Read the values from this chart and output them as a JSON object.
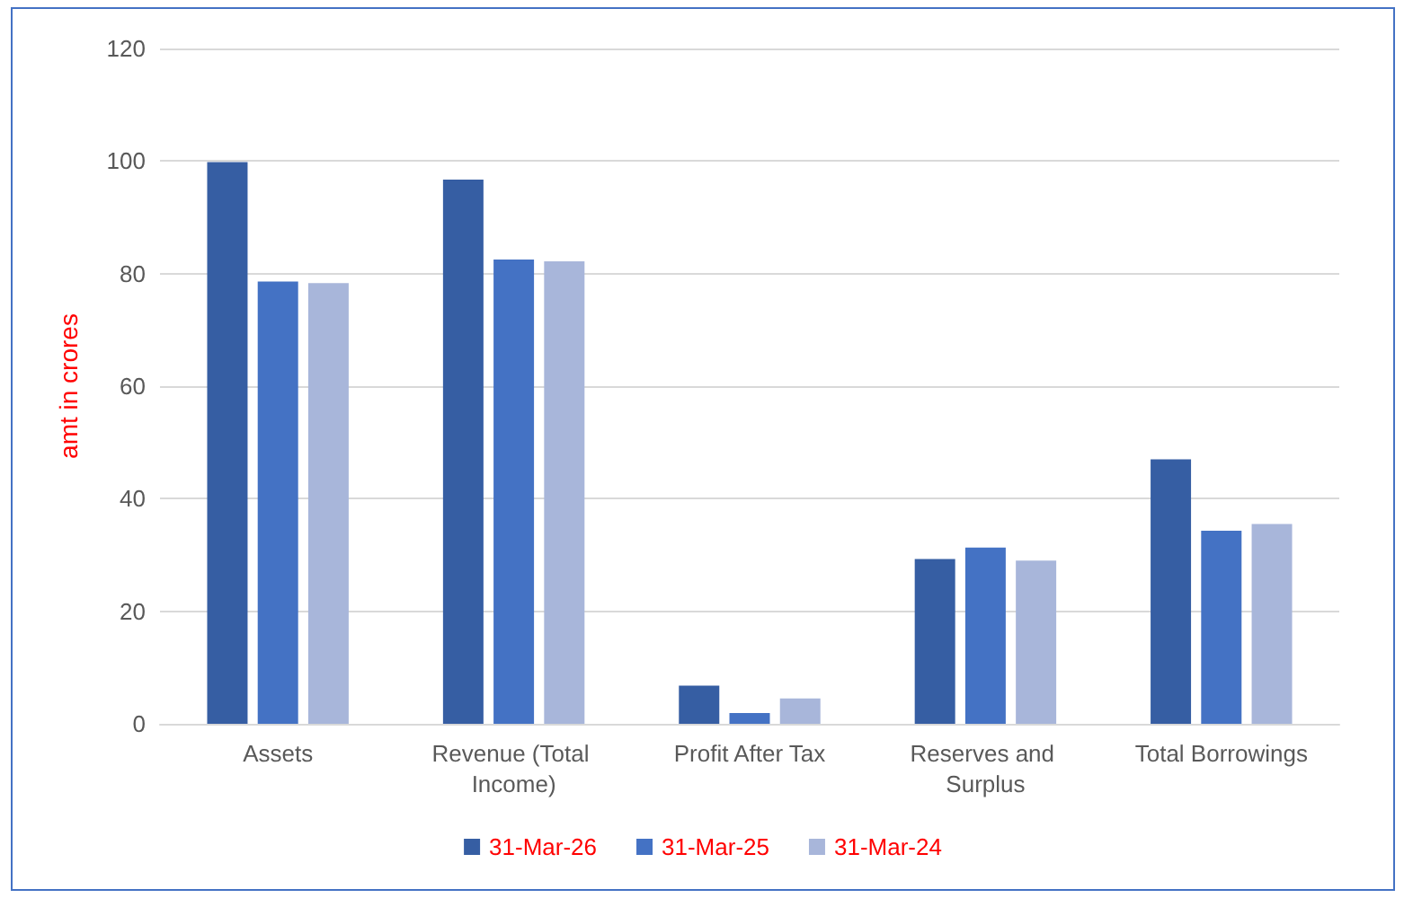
{
  "chart_data": {
    "type": "bar",
    "ylabel": "amt in crores",
    "categories": [
      "Assets",
      "Revenue (Total Income)",
      "Profit After Tax",
      "Reserves and Surplus",
      "Total Borrowings"
    ],
    "series": [
      {
        "name": "31-Mar-26",
        "color": "#365ea3",
        "values": [
          99.8,
          96.7,
          6.8,
          29.3,
          47.0
        ]
      },
      {
        "name": "31-Mar-25",
        "color": "#4472c4",
        "values": [
          78.6,
          82.5,
          1.9,
          31.3,
          34.3
        ]
      },
      {
        "name": "31-Mar-24",
        "color": "#a8b6da",
        "values": [
          78.3,
          82.2,
          4.5,
          29.0,
          35.5
        ]
      }
    ],
    "ylim": [
      0,
      120
    ],
    "yticks": [
      0,
      20,
      40,
      60,
      80,
      100,
      120
    ],
    "grid": "y",
    "legend": "bottom"
  }
}
